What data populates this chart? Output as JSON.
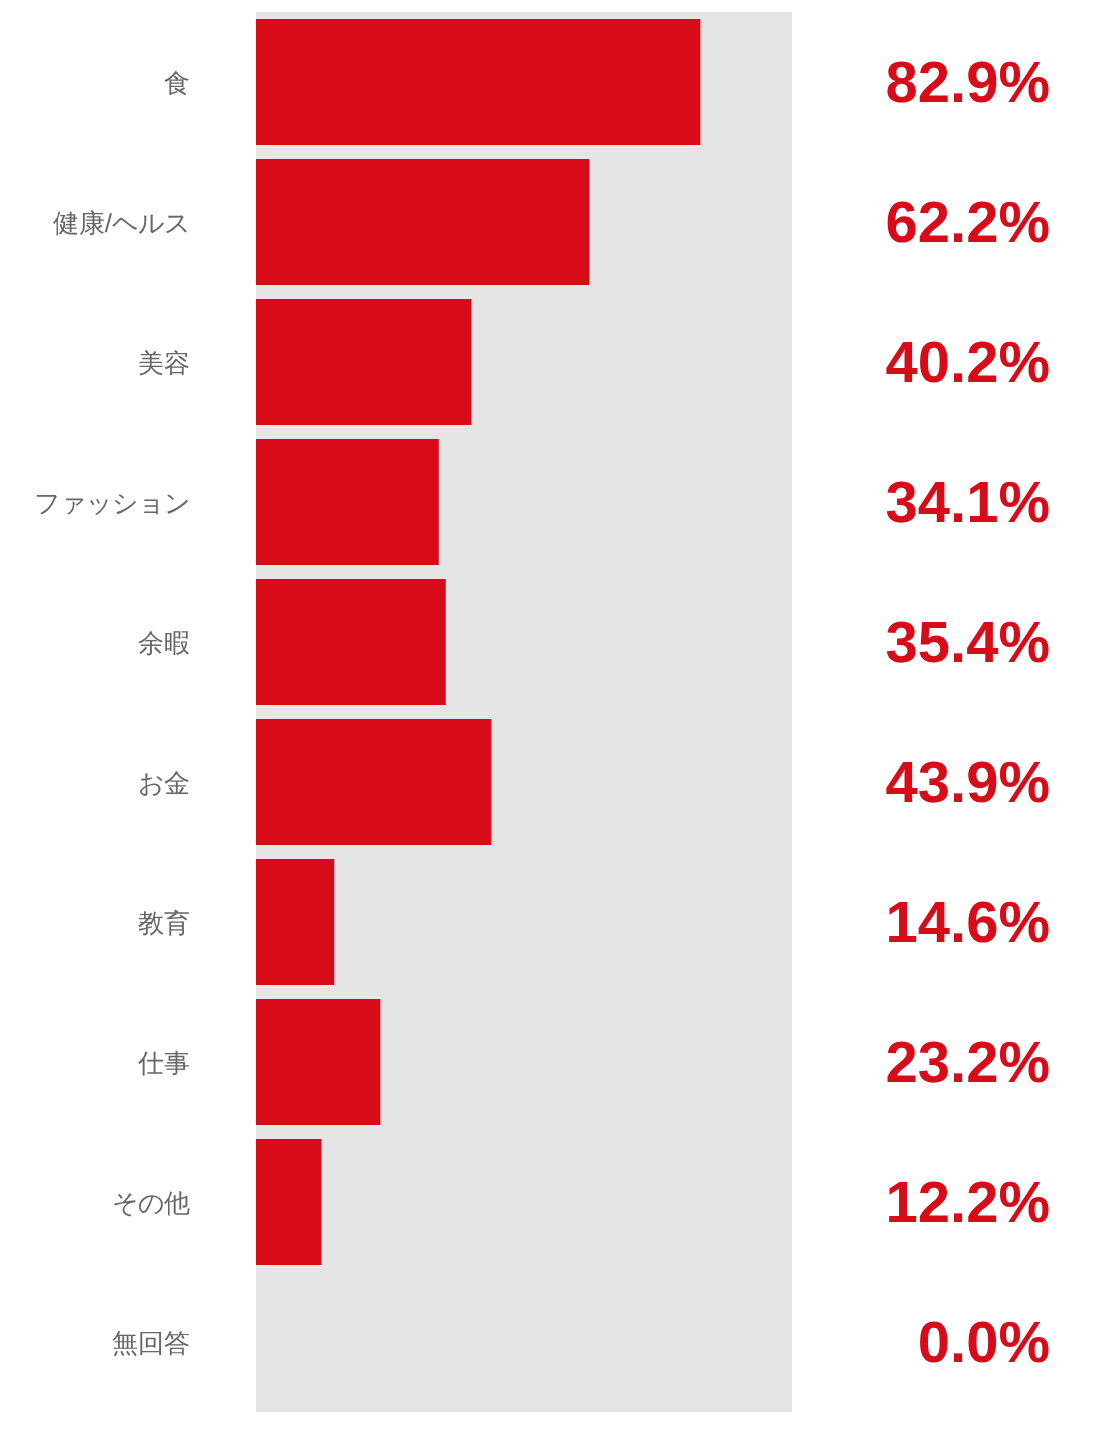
{
  "chart_data": {
    "type": "bar",
    "orientation": "horizontal",
    "categories": [
      "食",
      "健康/ヘルス",
      "美容",
      "ファッション",
      "余暇",
      "お金",
      "教育",
      "仕事",
      "その他",
      "無回答"
    ],
    "values": [
      82.9,
      62.2,
      40.2,
      34.1,
      35.4,
      43.9,
      14.6,
      23.2,
      12.2,
      0.0
    ],
    "value_labels": [
      "82.9%",
      "62.2%",
      "40.2%",
      "34.1%",
      "35.4%",
      "43.9%",
      "14.6%",
      "23.2%",
      "12.2%",
      "0.0%"
    ],
    "color": "#d70c18",
    "xlim": [
      0,
      100
    ],
    "tick_labels": "y",
    "bands": [
      {
        "axis": "x",
        "from": 0,
        "to": 100,
        "color": "#e5e5e5"
      }
    ]
  }
}
